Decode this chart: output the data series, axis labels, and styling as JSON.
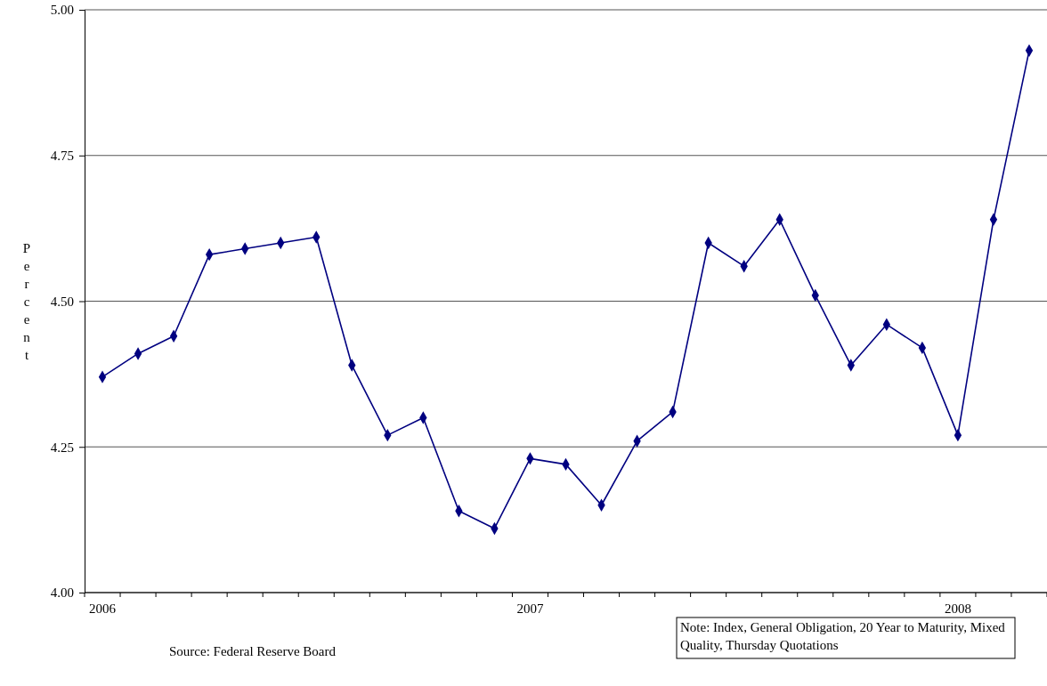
{
  "chart_data": {
    "type": "line",
    "ylabel": "Percent",
    "categories": [
      "2006",
      null,
      null,
      null,
      null,
      null,
      null,
      null,
      null,
      null,
      null,
      null,
      "2007",
      null,
      null,
      null,
      null,
      null,
      null,
      null,
      null,
      null,
      null,
      null,
      "2008",
      null,
      null
    ],
    "series": [
      {
        "color": "#000080",
        "values": [
          4.37,
          4.41,
          4.44,
          4.58,
          4.59,
          4.6,
          4.61,
          4.39,
          4.27,
          4.3,
          4.14,
          4.11,
          4.23,
          4.22,
          4.15,
          4.26,
          4.31,
          4.6,
          4.56,
          4.64,
          4.51,
          4.39,
          4.46,
          4.42,
          4.27,
          4.64,
          4.93
        ]
      }
    ],
    "ylim": [
      4,
      5
    ],
    "yticks": [
      {
        "value": 4,
        "label": "4.00"
      },
      {
        "value": 4.25,
        "label": "4.25"
      },
      {
        "value": 4.5,
        "label": "4.50"
      },
      {
        "value": 4.75,
        "label": "4.75"
      },
      {
        "value": 5,
        "label": "5.00"
      }
    ],
    "grid": "y",
    "marker": "diamond",
    "line_style": "solid",
    "annotations": [
      "Source: Federal Reserve Board",
      "Note: Index, General Obligation, 20 Year to Maturity, Mixed Quality, Thursday Quotations"
    ]
  }
}
